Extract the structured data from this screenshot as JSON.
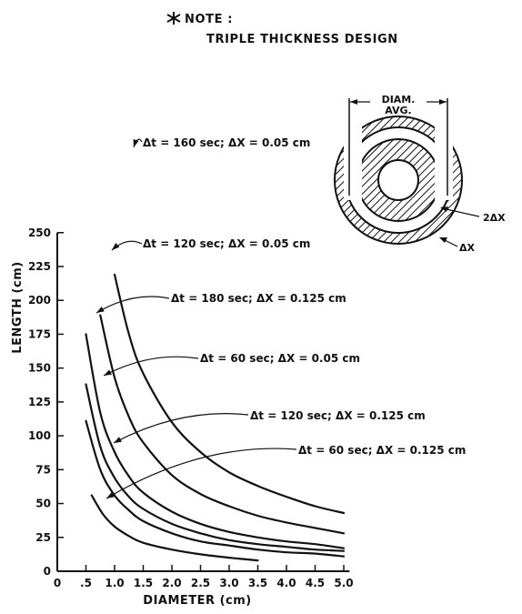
{
  "chart_data": {
    "type": "line",
    "title": "",
    "xlabel": "DIAMETER (cm)",
    "ylabel": "LENGTH (cm)",
    "xlim": [
      0,
      5.25
    ],
    "ylim": [
      0,
      250
    ],
    "x_ticks": [
      0,
      0.5,
      1.0,
      1.5,
      2.0,
      2.5,
      3.0,
      3.5,
      4.0,
      4.5,
      5.0
    ],
    "x_tick_labels": [
      "0",
      ".5",
      "1.0",
      "1.5",
      "2.0",
      "2.5",
      "3.0",
      "3.5",
      "4.0",
      "4.5",
      "5.0"
    ],
    "y_ticks": [
      0,
      25,
      50,
      75,
      100,
      125,
      150,
      175,
      200,
      225,
      250
    ],
    "y_tick_labels": [
      "0",
      "25",
      "50",
      "75",
      "100",
      "125",
      "150",
      "175",
      "200",
      "225",
      "250"
    ],
    "grid": false,
    "legend": "none",
    "note": {
      "line1": "NOTE :",
      "line2": "TRIPLE THICKNESS DESIGN"
    },
    "inset": {
      "label_diam": "DIAM.",
      "label_avg": "AVG.",
      "label_2dx": "2ΔX",
      "label_dx": "ΔX"
    },
    "series": [
      {
        "label": "Δt = 160 sec; ΔX = 0.05 cm",
        "x": [
          1.0,
          1.25,
          1.5,
          2.0,
          2.5,
          3.0,
          3.5,
          4.0,
          4.5,
          5.0
        ],
        "y": [
          219,
          175,
          146,
          110,
          88,
          73,
          63,
          55,
          48,
          43
        ]
      },
      {
        "label": "Δt = 120 sec; ΔX = 0.05 cm",
        "x": [
          0.75,
          1.0,
          1.25,
          1.5,
          2.0,
          2.5,
          3.0,
          3.5,
          4.0,
          4.5,
          5.0
        ],
        "y": [
          189,
          143,
          114,
          95,
          71,
          57,
          48,
          41,
          36,
          32,
          28
        ]
      },
      {
        "label": "Δt = 180 sec; ΔX = 0.125 cm",
        "x": [
          0.5,
          0.75,
          1.0,
          1.25,
          1.5,
          2.0,
          2.5,
          3.0,
          3.5,
          4.0,
          4.5,
          5.0
        ],
        "y": [
          175,
          117,
          88,
          70,
          58,
          44,
          35,
          29,
          25,
          22,
          20,
          17
        ]
      },
      {
        "label": "Δt = 60 sec; ΔX = 0.05 cm",
        "x": [
          0.5,
          0.75,
          1.0,
          1.25,
          1.5,
          2.0,
          2.5,
          3.0,
          3.5,
          4.0,
          4.5,
          5.0
        ],
        "y": [
          138,
          92,
          69,
          55,
          46,
          35,
          28,
          23,
          20,
          18,
          16,
          15
        ]
      },
      {
        "label": "Δt = 120 sec; ΔX = 0.125 cm",
        "x": [
          0.5,
          0.75,
          1.0,
          1.25,
          1.5,
          2.0,
          2.5,
          3.0,
          3.5,
          4.0,
          4.5,
          5.0
        ],
        "y": [
          111,
          75,
          56,
          45,
          37,
          28,
          22,
          19,
          16,
          14,
          13,
          11
        ]
      },
      {
        "label": "Δt = 60 sec; ΔX = 0.125 cm",
        "x": [
          0.6,
          0.8,
          1.0,
          1.25,
          1.5,
          2.0,
          2.5,
          3.0,
          3.5
        ],
        "y": [
          56,
          42,
          33,
          26,
          21,
          16,
          12.5,
          10,
          8
        ]
      }
    ]
  }
}
